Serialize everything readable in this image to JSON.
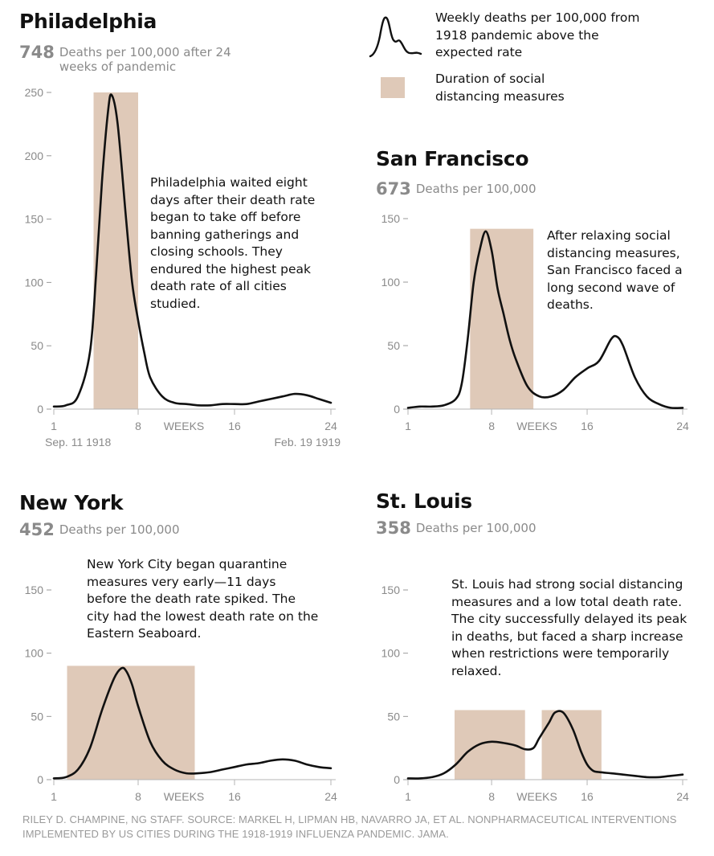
{
  "legend": {
    "line_label": "Weekly deaths per 100,000 from 1918 pandemic above the expected rate",
    "box_label": "Duration of social distancing measures",
    "box_color": "#dfc9b8",
    "line_color": "#111111"
  },
  "source": "RILEY D. CHAMPINE, NG STAFF. SOURCE: MARKEL H, LIPMAN HB, NAVARRO JA, ET AL. NONPHARMACEUTICAL INTERVENTIONS IMPLEMENTED BY US CITIES DURING THE 1918-1919 INFLUENZA PANDEMIC. JAMA.",
  "chart_data": [
    {
      "type": "line",
      "title": "Philadelphia",
      "stat_value": "748",
      "stat_label": "Deaths per 100,000 after 24 weeks of pandemic",
      "annotation": "Philadelphia waited eight days after their death rate began to take off before banning gatherings and closing schools. They endured the highest peak death rate of all cities studied.",
      "xlabel": "WEEKS",
      "x_ticks": [
        1,
        8,
        16,
        24
      ],
      "x_tick_labels": [
        "1",
        "8",
        "16",
        "24"
      ],
      "date_start_label": "Sep. 11 1918",
      "date_end_label": "Feb. 19 1919",
      "y_ticks": [
        0,
        50,
        100,
        150,
        200,
        250
      ],
      "y_tick_labels": [
        "0",
        "50",
        "100",
        "150",
        "200",
        "250"
      ],
      "xlim": [
        1,
        24
      ],
      "ylim": [
        0,
        250
      ],
      "distancing_periods": [
        [
          4.3,
          8.0
        ]
      ],
      "series": [
        {
          "x": [
            1,
            2,
            3,
            4,
            4.5,
            5,
            5.5,
            5.8,
            6.3,
            7,
            7.5,
            8,
            8.5,
            9,
            10,
            11,
            12,
            13,
            14,
            15,
            16,
            17,
            18,
            19,
            20,
            21,
            22,
            23,
            24
          ],
          "values": [
            2,
            3,
            10,
            45,
            105,
            180,
            235,
            248,
            225,
            150,
            100,
            70,
            45,
            25,
            10,
            5,
            4,
            3,
            3,
            4,
            4,
            4,
            6,
            8,
            10,
            12,
            11,
            8,
            5
          ]
        }
      ]
    },
    {
      "type": "line",
      "title": "San Francisco",
      "stat_value": "673",
      "stat_label": "Deaths per 100,000",
      "annotation": "After relaxing social distancing measures, San Francisco faced a long second wave of deaths.",
      "xlabel": "WEEKS",
      "x_ticks": [
        1,
        8,
        16,
        24
      ],
      "x_tick_labels": [
        "1",
        "8",
        "16",
        "24"
      ],
      "y_ticks": [
        0,
        50,
        100,
        150
      ],
      "y_tick_labels": [
        "0",
        "50",
        "100",
        "150"
      ],
      "xlim": [
        1,
        24
      ],
      "ylim": [
        0,
        150
      ],
      "distancing_periods": [
        [
          6.2,
          11.5
        ]
      ],
      "series": [
        {
          "x": [
            1,
            2,
            3,
            4,
            5,
            5.5,
            6,
            6.5,
            7,
            7.5,
            8,
            8.5,
            9,
            9.5,
            10,
            11,
            12,
            13,
            14,
            15,
            16,
            17,
            18,
            18.5,
            19,
            20,
            21,
            22,
            23,
            24
          ],
          "values": [
            1,
            2,
            2,
            3,
            8,
            20,
            55,
            100,
            125,
            140,
            125,
            95,
            75,
            55,
            40,
            18,
            10,
            10,
            15,
            25,
            32,
            38,
            55,
            57,
            50,
            25,
            10,
            4,
            1,
            1
          ]
        }
      ]
    },
    {
      "type": "line",
      "title": "New York",
      "stat_value": "452",
      "stat_label": "Deaths per 100,000",
      "annotation": "New York City began quarantine measures very early—11 days before the death rate spiked. The city had the lowest death rate on the Eastern Seaboard.",
      "xlabel": "WEEKS",
      "x_ticks": [
        1,
        8,
        16,
        24
      ],
      "x_tick_labels": [
        "1",
        "8",
        "16",
        "24"
      ],
      "y_ticks": [
        0,
        50,
        100,
        150
      ],
      "y_tick_labels": [
        "0",
        "50",
        "100",
        "150"
      ],
      "xlim": [
        1,
        24
      ],
      "ylim": [
        0,
        150
      ],
      "distancing_periods": [
        [
          2.1,
          12.7
        ]
      ],
      "series": [
        {
          "x": [
            1,
            2,
            3,
            4,
            5,
            6,
            6.6,
            7,
            7.5,
            8,
            9,
            10,
            11,
            12,
            13,
            14,
            15,
            16,
            17,
            18,
            19,
            20,
            21,
            22,
            23,
            24
          ],
          "values": [
            1,
            2,
            8,
            25,
            55,
            80,
            88,
            86,
            75,
            58,
            30,
            15,
            8,
            5,
            5,
            6,
            8,
            10,
            12,
            13,
            15,
            16,
            15,
            12,
            10,
            9
          ]
        }
      ]
    },
    {
      "type": "line",
      "title": "St. Louis",
      "stat_value": "358",
      "stat_label": "Deaths per 100,000",
      "annotation": "St. Louis had strong social distancing measures and a low total death rate. The city successfully delayed its peak in deaths, but faced a sharp increase when restrictions were temporarily relaxed.",
      "xlabel": "WEEKS",
      "x_ticks": [
        1,
        8,
        16,
        24
      ],
      "x_tick_labels": [
        "1",
        "8",
        "16",
        "24"
      ],
      "y_ticks": [
        0,
        50,
        100,
        150
      ],
      "y_tick_labels": [
        "0",
        "50",
        "100",
        "150"
      ],
      "xlim": [
        1,
        24
      ],
      "ylim": [
        0,
        150
      ],
      "distancing_periods": [
        [
          4.9,
          10.8
        ],
        [
          12.2,
          17.2
        ]
      ],
      "series": [
        {
          "x": [
            1,
            2,
            3,
            4,
            5,
            6,
            7,
            8,
            9,
            10,
            10.8,
            11.5,
            12,
            12.8,
            13.3,
            14,
            14.8,
            15.5,
            16,
            16.5,
            17,
            18,
            19,
            20,
            21,
            22,
            23,
            24
          ],
          "values": [
            1,
            1,
            2,
            5,
            12,
            22,
            28,
            30,
            29,
            27,
            24,
            25,
            33,
            45,
            53,
            53,
            40,
            22,
            12,
            7,
            6,
            5,
            4,
            3,
            2,
            2,
            3,
            4
          ]
        }
      ]
    }
  ]
}
